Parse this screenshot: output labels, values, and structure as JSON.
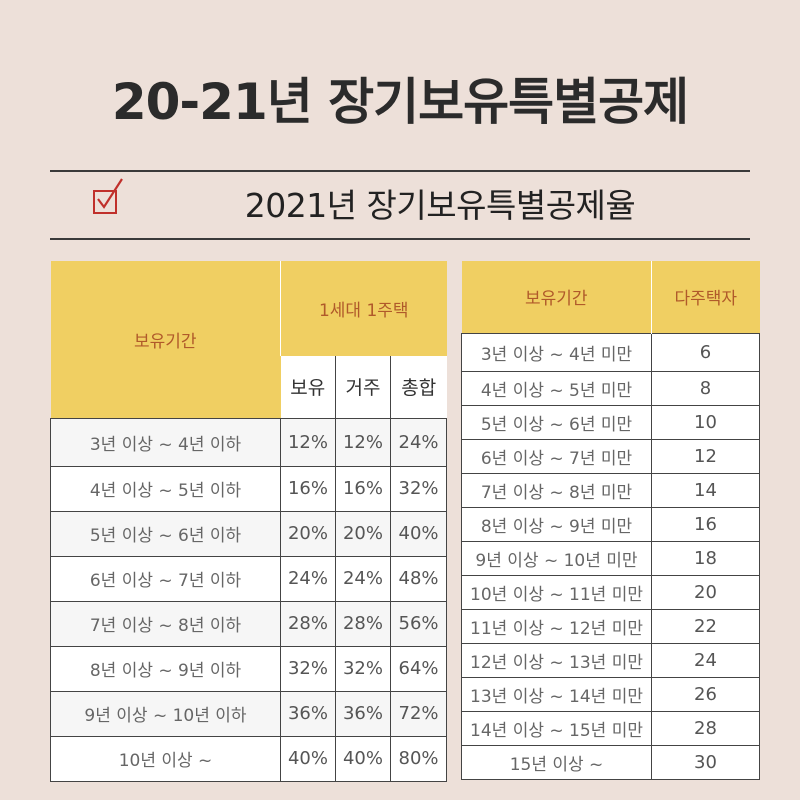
{
  "title": "20-21년 장기보유특별공제",
  "subtitle": "2021년 장기보유특별공제율",
  "icons": {
    "checkbox": "checked-box-icon"
  },
  "table1": {
    "header_period": "보유기간",
    "header_group": "1세대 1주택",
    "subheaders": [
      "보유",
      "거주",
      "총합"
    ],
    "rows": [
      {
        "period": "3년 이상 ~ 4년 이하",
        "holding": "12%",
        "residence": "12%",
        "total": "24%"
      },
      {
        "period": "4년 이상 ~ 5년 이하",
        "holding": "16%",
        "residence": "16%",
        "total": "32%"
      },
      {
        "period": "5년 이상 ~ 6년 이하",
        "holding": "20%",
        "residence": "20%",
        "total": "40%"
      },
      {
        "period": "6년 이상 ~ 7년 이하",
        "holding": "24%",
        "residence": "24%",
        "total": "48%"
      },
      {
        "period": "7년 이상 ~ 8년 이하",
        "holding": "28%",
        "residence": "28%",
        "total": "56%"
      },
      {
        "period": "8년 이상 ~ 9년 이하",
        "holding": "32%",
        "residence": "32%",
        "total": "64%"
      },
      {
        "period": "9년 이상 ~ 10년 이하",
        "holding": "36%",
        "residence": "36%",
        "total": "72%"
      },
      {
        "period": "10년 이상 ~",
        "holding": "40%",
        "residence": "40%",
        "total": "80%"
      }
    ]
  },
  "table2": {
    "header_period": "보유기간",
    "header_multi": "다주택자",
    "rows": [
      {
        "period": "3년 이상 ~ 4년 미만",
        "value": "6"
      },
      {
        "period": "4년 이상 ~ 5년 미만",
        "value": "8"
      },
      {
        "period": "5년 이상 ~ 6년 미만",
        "value": "10"
      },
      {
        "period": "6년 이상 ~ 7년 미만",
        "value": "12"
      },
      {
        "period": "7년 이상 ~ 8년 미만",
        "value": "14"
      },
      {
        "period": "8년 이상 ~ 9년 미만",
        "value": "16"
      },
      {
        "period": "9년 이상 ~ 10년 미만",
        "value": "18"
      },
      {
        "period": "10년 이상 ~ 11년 미만",
        "value": "20"
      },
      {
        "period": "11년 이상 ~ 12년 미만",
        "value": "22"
      },
      {
        "period": "12년 이상 ~ 13년 미만",
        "value": "24"
      },
      {
        "period": "13년 이상 ~ 14년 미만",
        "value": "26"
      },
      {
        "period": "14년 이상 ~ 15년 미만",
        "value": "28"
      },
      {
        "period": "15년 이상 ~",
        "value": "30"
      }
    ]
  }
}
